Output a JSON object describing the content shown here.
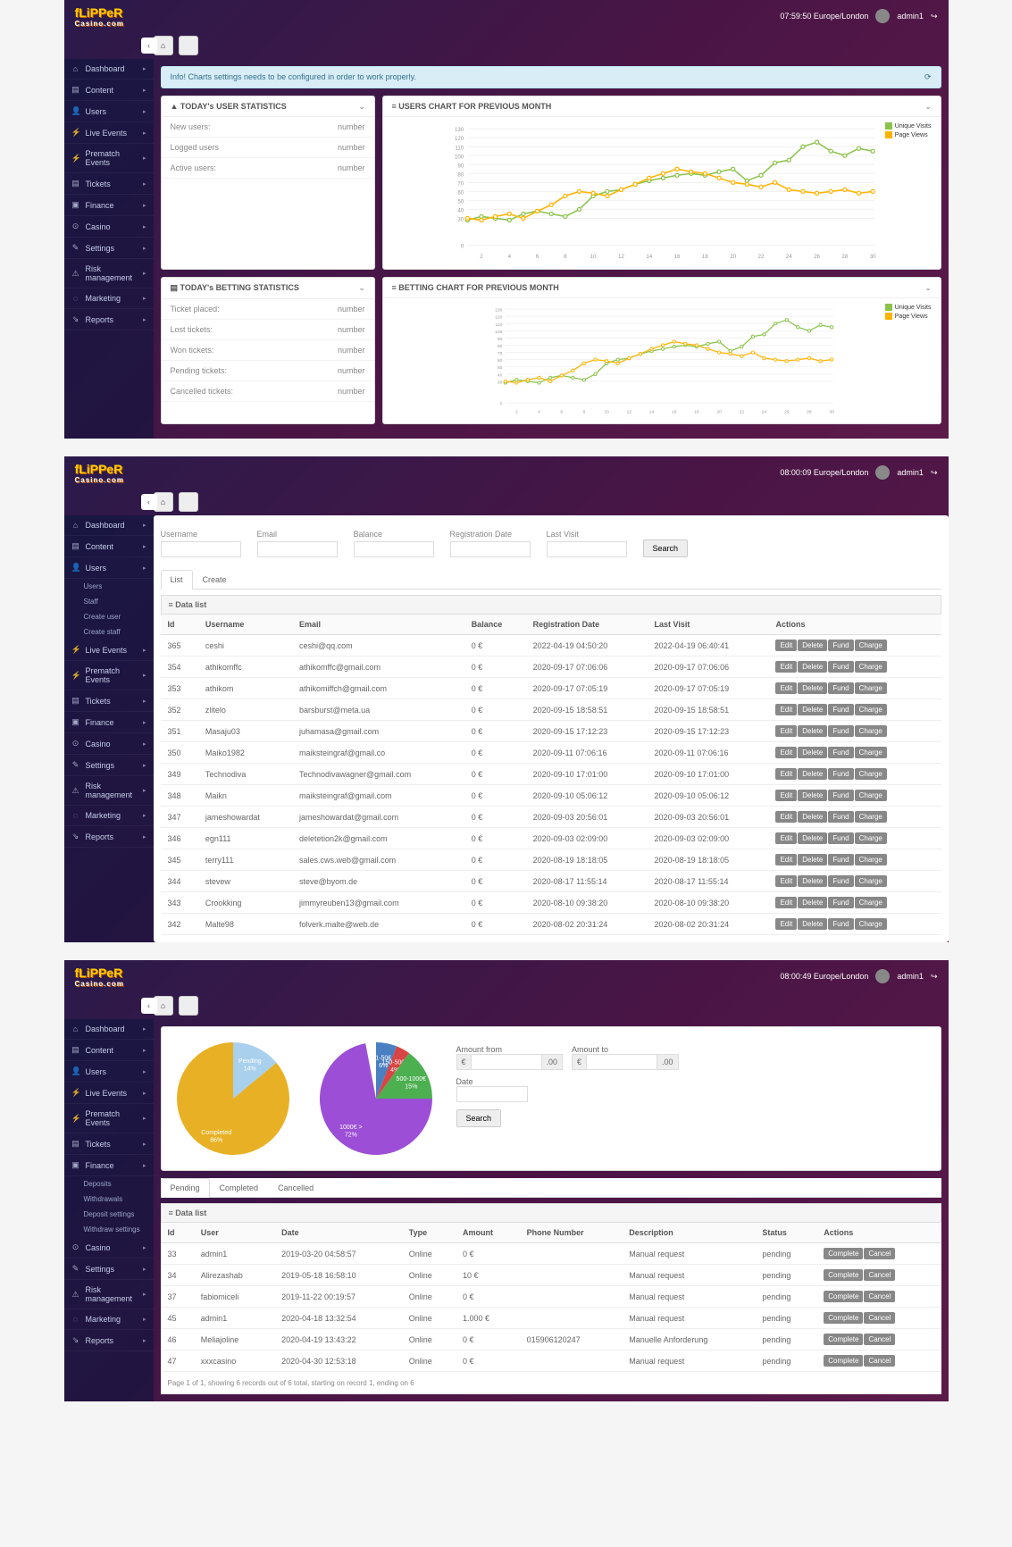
{
  "shared": {
    "logo_top": "fLiPPeR",
    "logo_sub": "Casino.com",
    "admin_user": "admin1",
    "nav": [
      {
        "ico": "⌂",
        "lbl": "Dashboard"
      },
      {
        "ico": "▤",
        "lbl": "Content"
      },
      {
        "ico": "👤",
        "lbl": "Users"
      },
      {
        "ico": "⚡",
        "lbl": "Live Events"
      },
      {
        "ico": "⚡",
        "lbl": "Prematch Events"
      },
      {
        "ico": "▤",
        "lbl": "Tickets"
      },
      {
        "ico": "▣",
        "lbl": "Finance"
      },
      {
        "ico": "⊙",
        "lbl": "Casino"
      },
      {
        "ico": "✎",
        "lbl": "Settings"
      },
      {
        "ico": "⚠",
        "lbl": "Risk management"
      },
      {
        "ico": "◌",
        "lbl": "Marketing"
      },
      {
        "ico": "⇘",
        "lbl": "Reports"
      }
    ],
    "datalist_label": "≡ Data list",
    "actions": {
      "edit": "Edit",
      "delete": "Delete",
      "fund": "Fund",
      "charge": "Charge",
      "complete": "Complete",
      "cancel": "Cancel"
    }
  },
  "s1": {
    "time": "07:59:50 Europe/London",
    "info_banner": "Info! Charts settings needs to be configured in order to work properly.",
    "user_stats": {
      "title": "▲ TODAY's USER STATISTICS",
      "rows": [
        [
          "New users:",
          "number"
        ],
        [
          "Logged users",
          "number"
        ],
        [
          "Active users:",
          "number"
        ]
      ]
    },
    "bet_stats": {
      "title": "▤ TODAY's BETTING STATISTICS",
      "rows": [
        [
          "Ticket placed:",
          "number"
        ],
        [
          "Lost tickets:",
          "number"
        ],
        [
          "Won tickets:",
          "number"
        ],
        [
          "Pending tickets:",
          "number"
        ],
        [
          "Cancelled tickets:",
          "number"
        ]
      ]
    },
    "chart1_title": "≡ USERS CHART FOR PREVIOUS MONTH",
    "chart2_title": "≡ BETTING CHART FOR PREVIOUS MONTH",
    "legend": [
      [
        "Unique Visits",
        "#8bc34a"
      ],
      [
        "Page Views",
        "#ffb300"
      ]
    ],
    "y_ticks": [
      "130",
      "120",
      "110",
      "100",
      "90",
      "80",
      "70",
      "60",
      "50",
      "40",
      "30",
      "0"
    ],
    "x_ticks": [
      "2",
      "4",
      "6",
      "8",
      "10",
      "12",
      "14",
      "16",
      "18",
      "20",
      "22",
      "24",
      "26",
      "28",
      "30"
    ],
    "series": {
      "green": [
        28,
        32,
        30,
        28,
        35,
        38,
        35,
        32,
        40,
        55,
        60,
        62,
        68,
        72,
        75,
        78,
        80,
        78,
        82,
        85,
        72,
        78,
        92,
        95,
        110,
        115,
        105,
        100,
        108,
        105
      ],
      "yellow": [
        30,
        28,
        32,
        35,
        30,
        38,
        45,
        55,
        60,
        58,
        55,
        62,
        68,
        75,
        80,
        85,
        82,
        80,
        75,
        70,
        68,
        65,
        70,
        62,
        60,
        58,
        60,
        62,
        58,
        60
      ]
    },
    "colors": {
      "green": "#8bc34a",
      "yellow": "#ffb300",
      "grid": "#f0f0f0"
    }
  },
  "s2": {
    "time": "08:00:09 Europe/London",
    "user_sub": [
      "Users",
      "Staff",
      "Create user",
      "Create staff"
    ],
    "filters": [
      "Username",
      "Email",
      "Balance",
      "Registration Date",
      "Last Visit"
    ],
    "search_btn": "Search",
    "tabs": [
      "List",
      "Create"
    ],
    "cols": [
      "Id",
      "Username",
      "Email",
      "Balance",
      "Registration Date",
      "Last Visit",
      "Actions"
    ],
    "rows": [
      [
        "365",
        "ceshi",
        "ceshi@qq.com",
        "0 €",
        "2022-04-19 04:50:20",
        "2022-04-19 06:40:41"
      ],
      [
        "354",
        "athikomffc",
        "athikomffc@gmail.com",
        "0 €",
        "2020-09-17 07:06:06",
        "2020-09-17 07:06:06"
      ],
      [
        "353",
        "athikom",
        "athikomiffch@gmail.com",
        "0 €",
        "2020-09-17 07:05:19",
        "2020-09-17 07:05:19"
      ],
      [
        "352",
        "zlitelo",
        "barsburst@meta.ua",
        "0 €",
        "2020-09-15 18:58:51",
        "2020-09-15 18:58:51"
      ],
      [
        "351",
        "Masaju03",
        "juhamasa@gmail.com",
        "0 €",
        "2020-09-15 17:12:23",
        "2020-09-15 17:12:23"
      ],
      [
        "350",
        "Maiko1982",
        "maiksteingraf@gmail.co",
        "0 €",
        "2020-09-11 07:06:16",
        "2020-09-11 07:06:16"
      ],
      [
        "349",
        "Technodiva",
        "Technodivawagner@gmail.com",
        "0 €",
        "2020-09-10 17:01:00",
        "2020-09-10 17:01:00"
      ],
      [
        "348",
        "Maikn",
        "maiksteingraf@gmail.com",
        "0 €",
        "2020-09-10 05:06:12",
        "2020-09-10 05:06:12"
      ],
      [
        "347",
        "jameshowardat",
        "jameshowardat@gmail.com",
        "0 €",
        "2020-09-03 20:56:01",
        "2020-09-03 20:56:01"
      ],
      [
        "346",
        "egn111",
        "deletetion2k@gmail.com",
        "0 €",
        "2020-09-03 02:09:00",
        "2020-09-03 02:09:00"
      ],
      [
        "345",
        "terry111",
        "sales.cws.web@gmail.com",
        "0 €",
        "2020-08-19 18:18:05",
        "2020-08-19 18:18:05"
      ],
      [
        "344",
        "stevew",
        "steve@byom.de",
        "0 €",
        "2020-08-17 11:55:14",
        "2020-08-17 11:55:14"
      ],
      [
        "343",
        "Crookking",
        "jimmyreuben13@gmail.com",
        "0 €",
        "2020-08-10 09:38:20",
        "2020-08-10 09:38:20"
      ],
      [
        "342",
        "Malte98",
        "folverk.malte@web.de",
        "0 €",
        "2020-08-02 20:31:24",
        "2020-08-02 20:31:24"
      ]
    ]
  },
  "s3": {
    "time": "08:00:49 Europe/London",
    "fin_sub": [
      "Deposits",
      "Withdrawals",
      "Deposit settings",
      "Withdraw settings"
    ],
    "pie1": {
      "slices": [
        {
          "label": "Pending",
          "pct": 14,
          "color": "#a9d0ec"
        },
        {
          "label": "Completed",
          "pct": 86,
          "color": "#e8b125"
        }
      ]
    },
    "pie2": {
      "slices": [
        {
          "label": "1-50€",
          "pct": 6,
          "color": "#4a7fc1"
        },
        {
          "label": "150-500€",
          "pct": 4,
          "color": "#d94545"
        },
        {
          "label": "500-1000€",
          "pct": 15,
          "color": "#4caf50"
        },
        {
          "label": "1000€ >",
          "pct": 72,
          "color": "#9c4fd6"
        }
      ]
    },
    "amount_from": "Amount from",
    "amount_to": "Amount to",
    "date_lbl": "Date",
    "search_btn": "Search",
    "euro": "€",
    "zeros": ".00",
    "tabs": [
      "Pending",
      "Completed",
      "Cancelled"
    ],
    "cols": [
      "Id",
      "User",
      "Date",
      "Type",
      "Amount",
      "Phone Number",
      "Description",
      "Status",
      "Actions"
    ],
    "rows": [
      [
        "33",
        "admin1",
        "2019-03-20 04:58:57",
        "Online",
        "0 €",
        "",
        "Manual request",
        "pending"
      ],
      [
        "34",
        "Alirezashab",
        "2019-05-18 16:58:10",
        "Online",
        "10 €",
        "",
        "Manual request",
        "pending"
      ],
      [
        "37",
        "fabiomiceli",
        "2019-11-22 00:19:57",
        "Online",
        "0 €",
        "",
        "Manual request",
        "pending"
      ],
      [
        "45",
        "admin1",
        "2020-04-18 13:32:54",
        "Online",
        "1.000 €",
        "",
        "Manual request",
        "pending"
      ],
      [
        "46",
        "Meliajoline",
        "2020-04-19 13:43:22",
        "Online",
        "0 €",
        "015906120247",
        "Manuelle Anforderung",
        "pending"
      ],
      [
        "47",
        "xxxcasino",
        "2020-04-30 12:53:18",
        "Online",
        "0 €",
        "",
        "Manual request",
        "pending"
      ]
    ],
    "pager": "Page 1 of 1, showing 6 records out of 6 total, starting on record 1, ending on 6"
  }
}
